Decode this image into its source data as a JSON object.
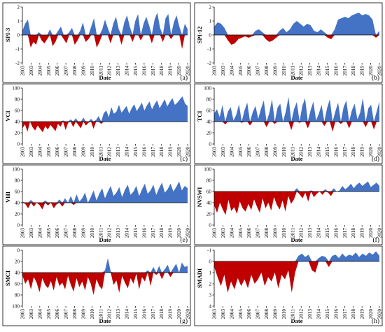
{
  "figure": {
    "positive_color": "#4472C4",
    "negative_color": "#C00000"
  },
  "chart_data": [
    {
      "id": "a",
      "type": "area",
      "letter": "(a)",
      "ylabel": "SPI-3",
      "xlabel": "Date",
      "ylim": [
        -2,
        2
      ],
      "yticks": [
        2,
        1,
        0,
        -1,
        -2
      ],
      "y_inverted": false,
      "baseline": 0,
      "x": {
        "start": 2003,
        "end": 2021
      },
      "x_tick_labels": [
        "2003",
        "2003",
        "2004",
        "2005",
        "2006",
        "2007",
        "2008",
        "2009",
        "2010",
        "2011",
        "2012",
        "2013",
        "2014",
        "2015",
        "2016",
        "2017",
        "2018",
        "2019",
        "2020",
        "2020"
      ],
      "values": [
        0.3,
        0.8,
        1.1,
        -0.9,
        -0.5,
        -0.7,
        0.2,
        -0.4,
        -0.6,
        -0.3,
        0.4,
        -0.8,
        -0.5,
        0.3,
        0.6,
        -0.3,
        -0.6,
        0.2,
        0.5,
        -0.7,
        -0.4,
        0.3,
        0.9,
        -0.5,
        -0.3,
        0.6,
        1.2,
        -0.9,
        -0.5,
        0.4,
        1.1,
        0.5,
        -0.6,
        0.8,
        1.3,
        0.4,
        -0.7,
        0.9,
        1.4,
        0.6,
        -0.5,
        1.0,
        1.5,
        -0.4,
        0.8,
        1.3,
        0.7,
        -0.6,
        1.1,
        1.6,
        0.5,
        -0.5,
        1.2,
        1.5,
        -0.3,
        0.9,
        1.4,
        0.6,
        -1.0,
        0.8,
        0.4
      ]
    },
    {
      "id": "b",
      "type": "area",
      "letter": "(b)",
      "ylabel": "SPI-12",
      "xlabel": "Date",
      "ylim": [
        -2,
        2
      ],
      "yticks": [
        2,
        1,
        0,
        -1,
        -2
      ],
      "y_inverted": false,
      "baseline": 0,
      "x": {
        "start": 2003,
        "end": 2021
      },
      "x_tick_labels": [
        "2003",
        "2003",
        "2004",
        "2005",
        "2006",
        "2007",
        "2008",
        "2009",
        "2010",
        "2011",
        "2012",
        "2013",
        "2014",
        "2015",
        "2016",
        "2017",
        "2018",
        "2019",
        "2020",
        "2020"
      ],
      "values": [
        0.6,
        0.9,
        0.8,
        0.5,
        -0.4,
        -0.7,
        -0.6,
        -0.3,
        -0.2,
        -0.1,
        -0.2,
        -0.1,
        0.3,
        0.4,
        0.2,
        -0.3,
        -0.5,
        -0.4,
        -0.2,
        0.3,
        0.5,
        0.2,
        0.4,
        0.8,
        1.0,
        0.8,
        0.6,
        0.8,
        0.7,
        0.3,
        0.2,
        0.4,
        0.2,
        -0.2,
        -0.3,
        0.4,
        1.1,
        1.2,
        1.3,
        1.2,
        1.4,
        1.5,
        1.6,
        1.4,
        1.5,
        1.4,
        1.1,
        -0.2,
        0.3
      ]
    },
    {
      "id": "c",
      "type": "area",
      "letter": "(c)",
      "ylabel": "VCI",
      "xlabel": "Date",
      "ylim": [
        0,
        100
      ],
      "yticks": [
        100,
        80,
        60,
        40,
        20,
        0
      ],
      "y_inverted": false,
      "baseline": 40,
      "x": {
        "start": 2003,
        "end": 2021
      },
      "x_tick_labels": [
        "2003",
        "2003",
        "2004",
        "2005",
        "2006",
        "2007",
        "2008",
        "2009",
        "2010",
        "2011",
        "2012",
        "2013",
        "2014",
        "2015",
        "2016",
        "2017",
        "2018",
        "2019",
        "2020",
        "2020"
      ],
      "values": [
        28,
        35,
        22,
        40,
        30,
        24,
        33,
        27,
        21,
        32,
        26,
        34,
        29,
        23,
        36,
        31,
        42,
        25,
        38,
        44,
        30,
        46,
        34,
        28,
        47,
        33,
        38,
        45,
        27,
        43,
        50,
        36,
        55,
        60,
        48,
        66,
        54,
        58,
        70,
        56,
        62,
        68,
        54,
        64,
        71,
        59,
        66,
        74,
        60,
        69,
        76,
        62,
        71,
        78,
        64,
        72,
        80,
        67,
        75,
        82,
        70,
        74,
        80,
        85,
        72,
        68
      ]
    },
    {
      "id": "d",
      "type": "area",
      "letter": "(d)",
      "ylabel": "TCI",
      "xlabel": "Date",
      "ylim": [
        0,
        100
      ],
      "yticks": [
        100,
        80,
        60,
        40,
        20,
        0
      ],
      "y_inverted": false,
      "baseline": 40,
      "x": {
        "start": 2003,
        "end": 2021
      },
      "x_tick_labels": [
        "2003",
        "2003",
        "2004",
        "2005",
        "2006",
        "2007",
        "2008",
        "2009",
        "2010",
        "2011",
        "2012",
        "2013",
        "2014",
        "2015",
        "2016",
        "2017",
        "2018",
        "2019",
        "2020",
        "2020"
      ],
      "values": [
        55,
        62,
        48,
        70,
        35,
        58,
        66,
        42,
        52,
        71,
        38,
        60,
        74,
        33,
        57,
        68,
        45,
        63,
        78,
        30,
        55,
        80,
        36,
        65,
        72,
        40,
        58,
        84,
        25,
        62,
        75,
        38,
        68,
        82,
        28,
        60,
        76,
        42,
        54,
        70,
        32,
        64,
        80,
        22,
        58,
        74,
        36,
        66,
        78,
        28,
        60,
        72,
        44,
        56,
        82,
        30,
        64,
        70,
        26,
        58,
        76
      ]
    },
    {
      "id": "e",
      "type": "area",
      "letter": "(e)",
      "ylabel": "VHI",
      "xlabel": "Date",
      "ylim": [
        0,
        100
      ],
      "yticks": [
        100,
        80,
        60,
        40,
        20,
        0
      ],
      "y_inverted": false,
      "baseline": 40,
      "x": {
        "start": 2003,
        "end": 2021
      },
      "x_tick_labels": [
        "2003",
        "2003",
        "2004",
        "2005",
        "2006",
        "2007",
        "2008",
        "2009",
        "2010",
        "2011",
        "2012",
        "2013",
        "2014",
        "2015",
        "2016",
        "2017",
        "2018",
        "2019",
        "2020",
        "2020"
      ],
      "values": [
        42,
        38,
        30,
        45,
        33,
        40,
        36,
        28,
        44,
        35,
        41,
        30,
        37,
        46,
        33,
        48,
        39,
        52,
        36,
        55,
        42,
        48,
        58,
        40,
        50,
        62,
        44,
        56,
        66,
        48,
        60,
        70,
        52,
        58,
        68,
        50,
        63,
        72,
        54,
        60,
        70,
        52,
        64,
        74,
        56,
        62,
        72,
        54,
        66,
        76,
        58,
        64,
        74,
        60,
        68,
        78,
        62,
        70,
        66
      ]
    },
    {
      "id": "f",
      "type": "area",
      "letter": "(f)",
      "ylabel": "NVSWI",
      "xlabel": "Date",
      "ylim": [
        0,
        100
      ],
      "yticks": [
        100,
        80,
        60,
        40,
        20,
        0
      ],
      "y_inverted": false,
      "baseline": 60,
      "x": {
        "start": 2003,
        "end": 2021
      },
      "x_tick_labels": [
        "2003",
        "2003",
        "2004",
        "2005",
        "2006",
        "2007",
        "2008",
        "2009",
        "2010",
        "2011",
        "2012",
        "2013",
        "2014",
        "2015",
        "2016",
        "2017",
        "2018",
        "2019",
        "2020",
        "2020"
      ],
      "values": [
        35,
        22,
        40,
        28,
        18,
        45,
        25,
        32,
        20,
        42,
        30,
        24,
        38,
        27,
        46,
        33,
        22,
        48,
        30,
        40,
        26,
        50,
        36,
        28,
        44,
        24,
        52,
        38,
        46,
        66,
        55,
        48,
        58,
        42,
        62,
        50,
        56,
        60,
        54,
        64,
        58,
        52,
        66,
        60,
        62,
        70,
        64,
        68,
        74,
        66,
        72,
        76,
        70,
        74,
        78,
        68,
        72,
        76,
        70
      ]
    },
    {
      "id": "g",
      "type": "area",
      "letter": "(g)",
      "ylabel": "SMCI",
      "xlabel": "Date",
      "ylim": [
        100,
        0
      ],
      "yticks": [
        0,
        20,
        40,
        60,
        80,
        100
      ],
      "y_inverted": true,
      "baseline": 40,
      "x": {
        "start": 2003,
        "end": 2021
      },
      "x_tick_labels": [
        "2003",
        "2003",
        "2004",
        "2005",
        "2006",
        "2007",
        "2008",
        "2009",
        "2010",
        "2011",
        "2012",
        "2013",
        "2014",
        "2015",
        "2016",
        "2017",
        "2018",
        "2019",
        "2020",
        "2020"
      ],
      "values": [
        45,
        60,
        52,
        70,
        48,
        58,
        75,
        50,
        62,
        68,
        55,
        72,
        48,
        64,
        58,
        70,
        46,
        62,
        74,
        50,
        66,
        56,
        72,
        48,
        60,
        80,
        52,
        64,
        70,
        36,
        14,
        38,
        62,
        54,
        76,
        46,
        58,
        68,
        50,
        60,
        42,
        70,
        48,
        56,
        36,
        64,
        30,
        44,
        28,
        52,
        34,
        26,
        48,
        32,
        24,
        40,
        22,
        30,
        28
      ]
    },
    {
      "id": "h",
      "type": "area",
      "letter": "(h)",
      "ylabel": "SMADI",
      "xlabel": "Date",
      "ylim": [
        4,
        -1
      ],
      "yticks": [
        -1,
        0,
        1,
        2,
        3,
        4
      ],
      "y_inverted": true,
      "baseline": 0,
      "x": {
        "start": 2003,
        "end": 2021
      },
      "x_tick_labels": [
        "2003",
        "2003",
        "2004",
        "2005",
        "2006",
        "2007",
        "2008",
        "2009",
        "2010",
        "2011",
        "2012",
        "2013",
        "2014",
        "2015",
        "2016",
        "2017",
        "2018",
        "2019",
        "2020",
        "2020"
      ],
      "values": [
        0.5,
        1.4,
        2.2,
        1.2,
        2.8,
        1.8,
        2.5,
        1.5,
        2.2,
        1.6,
        2.4,
        1.2,
        2.0,
        1.6,
        1.0,
        2.2,
        1.4,
        1.8,
        1.0,
        2.4,
        1.2,
        1.6,
        0.8,
        2.8,
        1.0,
        -0.5,
        -0.7,
        -0.4,
        -0.6,
        0.8,
        1.0,
        -0.3,
        -0.5,
        -0.4,
        0.5,
        -0.5,
        -0.6,
        -0.3,
        -0.7,
        -0.4,
        -0.6,
        -0.5,
        -0.8,
        -0.4,
        -0.7,
        -0.5,
        -0.8,
        -0.6,
        -0.9,
        -0.5
      ]
    }
  ]
}
